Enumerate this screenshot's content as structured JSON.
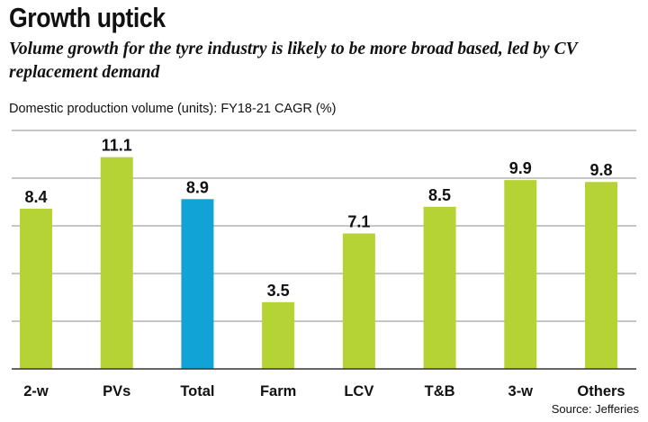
{
  "header": {
    "title": "Growth uptick",
    "subtitle": "Volume growth for the tyre industry is likely to be more broad based, led by CV replacement demand",
    "measure": "Domestic production volume (units): FY18-21 CAGR (%)"
  },
  "footer": {
    "source": "Source: Jefferies"
  },
  "chart_data": {
    "type": "bar",
    "title": "Growth uptick",
    "subtitle": "Volume growth for the tyre industry is likely to be more broad based, led by CV replacement demand",
    "ylabel": "Domestic production volume (units): FY18-21 CAGR (%)",
    "xlabel": "",
    "categories": [
      "2-w",
      "PVs",
      "Total",
      "Farm",
      "LCV",
      "T&B",
      "3-w",
      "Others"
    ],
    "values": [
      8.4,
      11.1,
      8.9,
      3.5,
      7.1,
      8.5,
      9.9,
      9.8
    ],
    "value_labels": [
      "8.4",
      "11.1",
      "8.9",
      "3.5",
      "7.1",
      "8.5",
      "9.9",
      "9.8"
    ],
    "ylim": [
      0,
      12.5
    ],
    "gridlines": [
      2.5,
      5.0,
      7.5,
      10.0,
      12.5
    ],
    "grid": true,
    "colors": {
      "default": "#b5d334",
      "highlight": "#11a3d6",
      "grid": "#8c8c8c",
      "axis": "#333333"
    },
    "highlight_category": "Total",
    "legend": "none",
    "source": "Source: Jefferies"
  }
}
